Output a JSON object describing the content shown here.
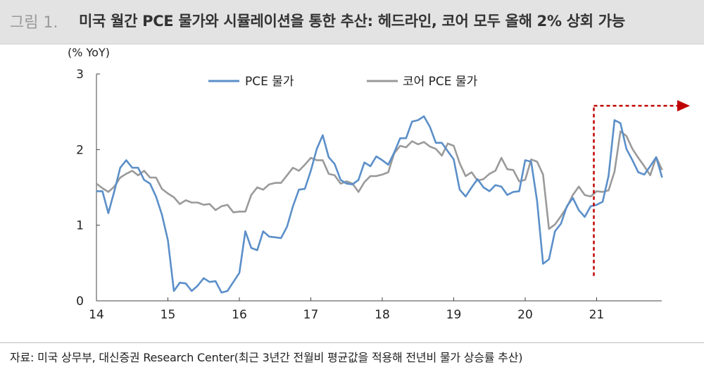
{
  "figure": {
    "label": "그림 1.",
    "title": "미국 월간 PCE 물가와 시뮬레이션을 통한 추산: 헤드라인, 코어 모두 올해 2% 상회 가능",
    "source": "자료: 미국 상무부, 대신증권 Research Center(최근 3년간 전월비 평균값을 적용해 전년비 물가 상승률 추산)"
  },
  "chart_data": {
    "type": "line",
    "title": "",
    "ylabel": "(% YoY)",
    "xlabel": "",
    "ylim": [
      0,
      3
    ],
    "xlim": [
      2014,
      2022
    ],
    "y_ticks": [
      "0",
      "1",
      "2",
      "3"
    ],
    "x_ticks": [
      "14",
      "15",
      "16",
      "17",
      "18",
      "19",
      "20",
      "21"
    ],
    "grid": false,
    "legend_position": "top",
    "series": [
      {
        "name": "PCE 물가",
        "color": "#5b8fc9",
        "values": [
          1.45,
          1.45,
          1.16,
          1.45,
          1.76,
          1.86,
          1.76,
          1.76,
          1.6,
          1.55,
          1.38,
          1.14,
          0.8,
          0.13,
          0.24,
          0.23,
          0.13,
          0.2,
          0.3,
          0.25,
          0.26,
          0.11,
          0.13,
          0.25,
          0.37,
          0.92,
          0.7,
          0.67,
          0.92,
          0.85,
          0.84,
          0.83,
          0.98,
          1.25,
          1.47,
          1.48,
          1.72,
          2.01,
          2.19,
          1.9,
          1.81,
          1.6,
          1.55,
          1.54,
          1.6,
          1.83,
          1.78,
          1.91,
          1.86,
          1.8,
          1.96,
          2.15,
          2.15,
          2.37,
          2.39,
          2.44,
          2.3,
          2.09,
          2.09,
          1.98,
          1.87,
          1.47,
          1.38,
          1.5,
          1.61,
          1.5,
          1.45,
          1.53,
          1.51,
          1.4,
          1.44,
          1.45,
          1.86,
          1.84,
          1.32,
          0.49,
          0.55,
          0.92,
          1.02,
          1.25,
          1.36,
          1.2,
          1.11,
          1.25,
          1.27,
          1.31,
          1.65,
          2.39,
          2.35,
          2.01,
          1.86,
          1.7,
          1.67,
          1.78,
          1.9,
          1.63
        ],
        "projected_from_index": 84
      },
      {
        "name": "코어 PCE 물가",
        "color": "#9a9a9a",
        "values": [
          1.55,
          1.49,
          1.44,
          1.51,
          1.63,
          1.68,
          1.72,
          1.66,
          1.72,
          1.63,
          1.63,
          1.48,
          1.42,
          1.37,
          1.28,
          1.33,
          1.3,
          1.3,
          1.27,
          1.28,
          1.2,
          1.25,
          1.27,
          1.17,
          1.18,
          1.18,
          1.4,
          1.5,
          1.47,
          1.54,
          1.56,
          1.56,
          1.66,
          1.76,
          1.72,
          1.8,
          1.89,
          1.86,
          1.86,
          1.68,
          1.66,
          1.55,
          1.58,
          1.55,
          1.44,
          1.57,
          1.65,
          1.65,
          1.67,
          1.7,
          1.95,
          2.05,
          2.03,
          2.11,
          2.07,
          2.1,
          2.04,
          2.01,
          1.92,
          2.08,
          2.05,
          1.82,
          1.65,
          1.7,
          1.59,
          1.61,
          1.68,
          1.72,
          1.89,
          1.74,
          1.73,
          1.58,
          1.6,
          1.87,
          1.84,
          1.67,
          0.95,
          1.01,
          1.12,
          1.24,
          1.4,
          1.51,
          1.4,
          1.38,
          1.45,
          1.44,
          1.46,
          1.71,
          2.24,
          2.18,
          2.01,
          1.89,
          1.78,
          1.66,
          1.9,
          1.73
        ],
        "projected_from_index": 84
      }
    ],
    "annotation": {
      "type": "projection-marker",
      "color": "#c00000",
      "x": 2021,
      "y_range": [
        0.33,
        2.58
      ],
      "arrow_to_x": 2022.2
    }
  }
}
